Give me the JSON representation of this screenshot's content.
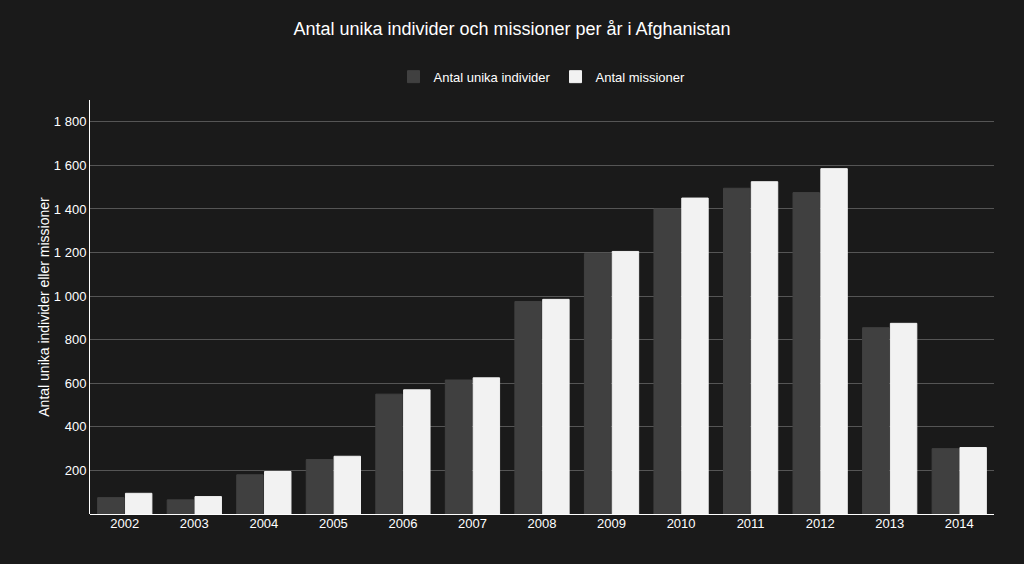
{
  "chart_data": {
    "type": "bar",
    "title": "Antal unika individer och missioner per år i Afghanistan",
    "ylabel": "Antal unika individer eller missioner",
    "categories": [
      "2002",
      "2003",
      "2004",
      "2005",
      "2006",
      "2007",
      "2008",
      "2009",
      "2010",
      "2011",
      "2012",
      "2013",
      "2014"
    ],
    "series": [
      {
        "name": "Antal unika individer",
        "color": "#404040",
        "values": [
          75,
          65,
          180,
          250,
          550,
          615,
          975,
          1195,
          1400,
          1495,
          1475,
          855,
          300
        ]
      },
      {
        "name": "Antal missioner",
        "color": "#f2f2f2",
        "values": [
          95,
          80,
          195,
          265,
          570,
          625,
          985,
          1205,
          1450,
          1525,
          1585,
          875,
          305
        ]
      }
    ],
    "ylim": [
      0,
      1900
    ],
    "yticks": [
      {
        "value": 0,
        "label": ""
      },
      200,
      400,
      600,
      800,
      {
        "value": 1000,
        "label": "1 000"
      },
      {
        "value": 1200,
        "label": "1 200"
      },
      {
        "value": 1400,
        "label": "1 400"
      },
      {
        "value": 1600,
        "label": "1 600"
      },
      {
        "value": 1800,
        "label": "1 800"
      }
    ],
    "grid": true,
    "legend": "top"
  }
}
